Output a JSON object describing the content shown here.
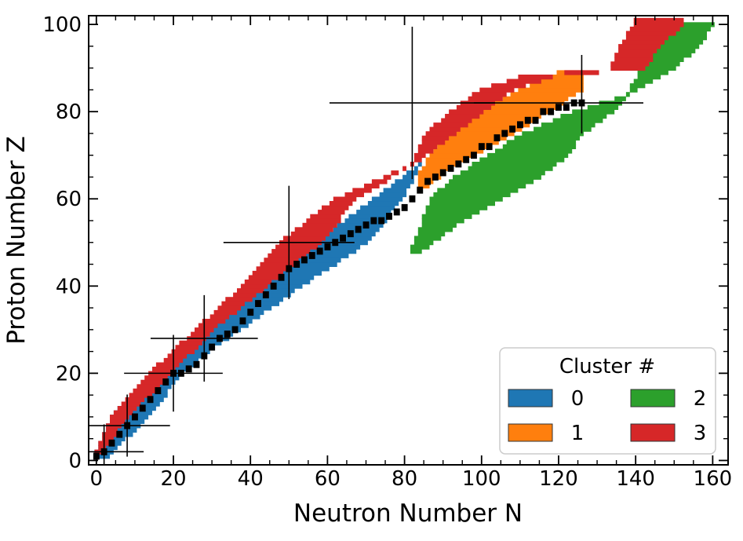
{
  "chart_data": {
    "type": "scatter",
    "title": "",
    "xlabel": "Neutron Number N",
    "ylabel": "Proton Number Z",
    "xlim": [
      -2,
      164
    ],
    "ylim": [
      -1,
      102
    ],
    "xticks": [
      0,
      20,
      40,
      60,
      80,
      100,
      120,
      140,
      160
    ],
    "yticks": [
      0,
      20,
      40,
      60,
      80,
      100
    ],
    "grid": false,
    "legend": {
      "title": "Cluster #",
      "placement": "lower-right",
      "columns": 2,
      "entries": [
        {
          "label": "0",
          "color": "#1f77b4"
        },
        {
          "label": "1",
          "color": "#ff7f0e"
        },
        {
          "label": "2",
          "color": "#2ca02c"
        },
        {
          "label": "3",
          "color": "#d62728"
        }
      ]
    },
    "series": [
      {
        "cluster": "0",
        "color": "#1f77b4",
        "region": {
          "Z_from": 1,
          "Z_to": 68,
          "N_lower": [
            [
              1,
              0
            ],
            [
              10,
              4
            ],
            [
              20,
              16
            ],
            [
              30,
              30
            ],
            [
              40,
              44
            ],
            [
              50,
              57
            ],
            [
              60,
              72
            ],
            [
              68,
              84
            ]
          ],
          "N_upper": [
            [
              1,
              3
            ],
            [
              10,
              13
            ],
            [
              20,
              22
            ],
            [
              26,
              30
            ],
            [
              30,
              37
            ],
            [
              40,
              53
            ],
            [
              50,
              70
            ],
            [
              60,
              79
            ],
            [
              68,
              84
            ]
          ]
        }
      },
      {
        "cluster": "1",
        "color": "#ff7f0e",
        "region": {
          "Z_from": 62,
          "Z_to": 89,
          "N_lower": [
            [
              62,
              84
            ],
            [
              66,
              84
            ],
            [
              70,
              87
            ],
            [
              75,
              92
            ],
            [
              80,
              100
            ],
            [
              85,
              110
            ],
            [
              89,
              120
            ]
          ],
          "N_upper": [
            [
              62,
              84
            ],
            [
              66,
              90
            ],
            [
              70,
              98
            ],
            [
              75,
              108
            ],
            [
              80,
              117
            ],
            [
              85,
              126
            ],
            [
              89,
              126
            ]
          ]
        }
      },
      {
        "cluster": "2",
        "color": "#2ca02c",
        "region": {
          "Z_from": 48,
          "Z_to": 100,
          "N_lower": [
            [
              48,
              82
            ],
            [
              55,
              85
            ],
            [
              60,
              87
            ],
            [
              65,
              93
            ],
            [
              70,
              102
            ],
            [
              75,
              111
            ],
            [
              80,
              124
            ],
            [
              84,
              138
            ],
            [
              90,
              142
            ],
            [
              95,
              146
            ],
            [
              100,
              152
            ]
          ],
          "N_upper": [
            [
              48,
              84
            ],
            [
              55,
              95
            ],
            [
              60,
              105
            ],
            [
              65,
              115
            ],
            [
              70,
              122
            ],
            [
              75,
              126
            ],
            [
              80,
              134
            ],
            [
              84,
              138
            ],
            [
              90,
              150
            ],
            [
              95,
              156
            ],
            [
              100,
              160
            ]
          ]
        }
      },
      {
        "cluster": "3",
        "color": "#d62728",
        "region": {
          "Z_from": 2,
          "Z_to": 101,
          "N_lower": [
            [
              2,
              0
            ],
            [
              10,
              4
            ],
            [
              20,
              14
            ],
            [
              30,
              26
            ],
            [
              40,
              38
            ],
            [
              50,
              48
            ],
            [
              60,
              62
            ],
            [
              68,
              82
            ],
            [
              75,
              86
            ],
            [
              80,
              92
            ],
            [
              85,
              100
            ],
            [
              88,
              110
            ],
            [
              90,
              134
            ],
            [
              95,
              136
            ],
            [
              100,
              140
            ]
          ],
          "N_upper": [
            [
              2,
              1
            ],
            [
              10,
              8
            ],
            [
              20,
              19
            ],
            [
              30,
              30
            ],
            [
              40,
              44
            ],
            [
              50,
              58
            ],
            [
              60,
              67
            ],
            [
              68,
              82
            ],
            [
              75,
              93
            ],
            [
              80,
              100
            ],
            [
              85,
              108
            ],
            [
              88,
              118
            ],
            [
              90,
              142
            ],
            [
              95,
              146
            ],
            [
              100,
              152
            ]
          ]
        }
      }
    ],
    "stability_line": {
      "color": "#000000",
      "points": [
        [
          0,
          1
        ],
        [
          2,
          2
        ],
        [
          4,
          4
        ],
        [
          6,
          6
        ],
        [
          8,
          8
        ],
        [
          10,
          10
        ],
        [
          12,
          12
        ],
        [
          14,
          14
        ],
        [
          16,
          16
        ],
        [
          18,
          18
        ],
        [
          20,
          20
        ],
        [
          22,
          20
        ],
        [
          24,
          21
        ],
        [
          26,
          22
        ],
        [
          28,
          24
        ],
        [
          30,
          26
        ],
        [
          32,
          28
        ],
        [
          34,
          29
        ],
        [
          36,
          30
        ],
        [
          38,
          32
        ],
        [
          40,
          34
        ],
        [
          42,
          36
        ],
        [
          44,
          38
        ],
        [
          46,
          40
        ],
        [
          48,
          42
        ],
        [
          50,
          44
        ],
        [
          52,
          45
        ],
        [
          54,
          46
        ],
        [
          56,
          47
        ],
        [
          58,
          48
        ],
        [
          60,
          49
        ],
        [
          62,
          50
        ],
        [
          64,
          51
        ],
        [
          66,
          52
        ],
        [
          68,
          53
        ],
        [
          70,
          54
        ],
        [
          72,
          55
        ],
        [
          74,
          55
        ],
        [
          76,
          56
        ],
        [
          78,
          57
        ],
        [
          80,
          58
        ],
        [
          82,
          60
        ],
        [
          84,
          62
        ],
        [
          86,
          64
        ],
        [
          88,
          65
        ],
        [
          90,
          66
        ],
        [
          92,
          67
        ],
        [
          94,
          68
        ],
        [
          96,
          69
        ],
        [
          98,
          70
        ],
        [
          100,
          72
        ],
        [
          102,
          72
        ],
        [
          104,
          74
        ],
        [
          106,
          75
        ],
        [
          108,
          76
        ],
        [
          110,
          77
        ],
        [
          112,
          78
        ],
        [
          114,
          78
        ],
        [
          116,
          80
        ],
        [
          118,
          80
        ],
        [
          120,
          81
        ],
        [
          122,
          81
        ],
        [
          124,
          82
        ],
        [
          126,
          82
        ]
      ]
    },
    "magic_numbers": [
      {
        "N": 2,
        "Z": 2
      },
      {
        "N": 8,
        "Z": 8
      },
      {
        "N": 20,
        "Z": 20
      },
      {
        "N": 28,
        "Z": 28
      },
      {
        "N": 50,
        "Z": 50
      },
      {
        "N": 82,
        "Z": 82
      },
      {
        "N": 126
      }
    ]
  }
}
